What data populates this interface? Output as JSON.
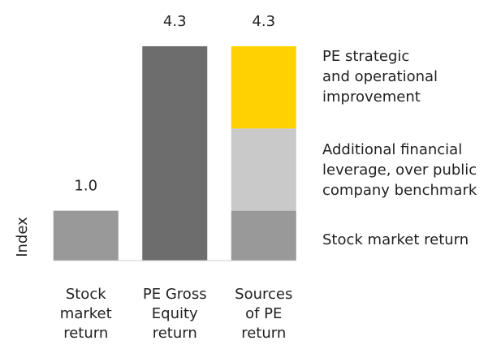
{
  "chart_data": {
    "type": "stacked_bar",
    "y_label": "Index",
    "categories": [
      [
        "Stock",
        "market",
        "return"
      ],
      [
        "PE Gross",
        "Equity",
        "return"
      ],
      [
        "Sources",
        "of PE",
        "return"
      ]
    ],
    "series": [
      {
        "name": [
          "Stock market return"
        ],
        "color": "#999999",
        "values": [
          1.0,
          null,
          1.0
        ]
      },
      {
        "color": "#6d6d6d",
        "values": [
          null,
          4.3,
          null
        ]
      },
      {
        "name": [
          "Additional financial",
          "leverage, over public",
          "company benchmark"
        ],
        "color": "#c9c9c9",
        "values": [
          null,
          null,
          1.65
        ]
      },
      {
        "name": [
          "PE strategic",
          "and operational",
          "improvement"
        ],
        "color": "#ffd200",
        "values": [
          null,
          null,
          1.65
        ]
      }
    ],
    "totals": [
      1.0,
      4.3,
      4.3
    ],
    "total_labels": [
      "1.0",
      "4.3",
      "4.3"
    ],
    "ylim": [
      0,
      5
    ],
    "legend": "right"
  }
}
